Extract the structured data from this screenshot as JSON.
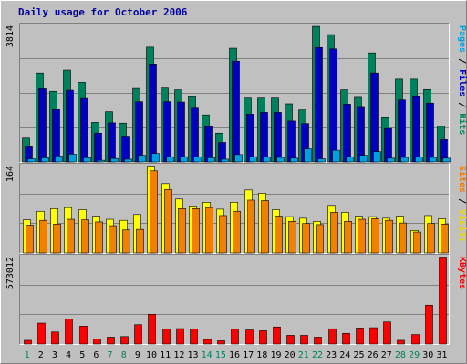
{
  "chart_data": {
    "type": "bar",
    "title": "Daily usage for October 2006",
    "categories": [
      "1",
      "2",
      "3",
      "4",
      "5",
      "6",
      "7",
      "8",
      "9",
      "10",
      "11",
      "12",
      "13",
      "14",
      "15",
      "16",
      "17",
      "18",
      "19",
      "20",
      "21",
      "22",
      "23",
      "24",
      "25",
      "26",
      "27",
      "28",
      "29",
      "30",
      "31"
    ],
    "weekend_days": [
      "1",
      "7",
      "8",
      "14",
      "15",
      "21",
      "22",
      "28",
      "29"
    ],
    "panels": [
      {
        "id": "hits",
        "max_label": "3814",
        "ymax": 3814,
        "legend": [
          {
            "text": "Pages",
            "color": "#00a0e0"
          },
          {
            "text": " / ",
            "color": "#000000"
          },
          {
            "text": "Files",
            "color": "#0000c0"
          },
          {
            "text": " / ",
            "color": "#000000"
          },
          {
            "text": "Hits",
            "color": "#00805c"
          }
        ],
        "series": [
          {
            "name": "Hits",
            "color": "#00805c",
            "values": [
              680,
              2500,
              1990,
              2580,
              2240,
              1120,
              1420,
              1100,
              2070,
              3220,
              2080,
              2030,
              1840,
              1330,
              820,
              3190,
              1800,
              1800,
              1800,
              1640,
              1470,
              3800,
              3570,
              2030,
              1820,
              3060,
              1250,
              2330,
              2330,
              2040,
              1010
            ]
          },
          {
            "name": "Files",
            "color": "#0000c0",
            "values": [
              460,
              2060,
              1480,
              2020,
              1790,
              820,
              1110,
              710,
              1700,
              2750,
              1700,
              1690,
              1520,
              1000,
              560,
              2830,
              1350,
              1400,
              1400,
              1160,
              1090,
              3210,
              3170,
              1630,
              1540,
              2500,
              950,
              1750,
              1840,
              1660,
              640
            ]
          },
          {
            "name": "Pages",
            "color": "#00a0e0",
            "values": [
              100,
              130,
              180,
              230,
              130,
              60,
              110,
              90,
              200,
              250,
              160,
              160,
              150,
              130,
              90,
              220,
              160,
              160,
              140,
              120,
              380,
              100,
              340,
              150,
              200,
              300,
              120,
              140,
              150,
              140,
              120
            ]
          }
        ]
      },
      {
        "id": "visits",
        "max_label": "164",
        "ymax": 164,
        "legend": [
          {
            "text": "Sites",
            "color": "#f07800"
          },
          {
            "text": " / ",
            "color": "#000000"
          },
          {
            "text": "Visits",
            "color": "#f0d800"
          }
        ],
        "series": [
          {
            "name": "Visits",
            "color": "#ffff00",
            "values": [
              63,
              79,
              84,
              86,
              82,
              70,
              64,
              62,
              73,
              164,
              131,
              102,
              89,
              96,
              83,
              96,
              119,
              113,
              82,
              69,
              66,
              60,
              90,
              77,
              70,
              69,
              66,
              70,
              43,
              71,
              65
            ]
          },
          {
            "name": "Sites",
            "color": "#f08000",
            "values": [
              53,
              62,
              55,
              64,
              63,
              59,
              52,
              44,
              45,
              155,
              120,
              84,
              84,
              86,
              71,
              79,
              100,
              99,
              70,
              60,
              56,
              54,
              77,
              60,
              64,
              65,
              62,
              57,
              40,
              56,
              55
            ]
          }
        ]
      },
      {
        "id": "kbytes",
        "max_label": "573012",
        "ymax": 573012,
        "legend": [
          {
            "text": "KBytes",
            "color": "#ff0000"
          }
        ],
        "series": [
          {
            "name": "KBytes",
            "color": "#ff0000",
            "values": [
              27000,
              140000,
              82000,
              168000,
              120000,
              36000,
              48000,
              52000,
              130000,
              198000,
              100000,
              104000,
              100000,
              33000,
              24000,
              100000,
              95000,
              90000,
              115000,
              60000,
              60000,
              48000,
              103000,
              73000,
              108000,
              110000,
              148000,
              27000,
              65000,
              258000,
              585000
            ]
          }
        ]
      }
    ]
  }
}
